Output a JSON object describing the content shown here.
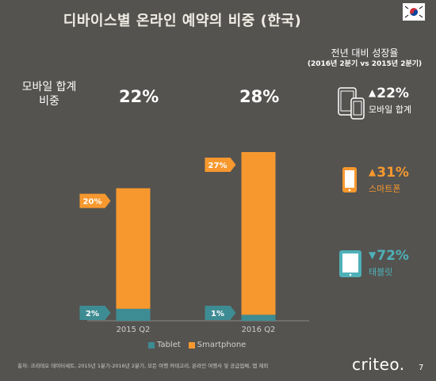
{
  "header": {
    "title": "디바이스별 온라인 예약의 비중 (한국)"
  },
  "summary": {
    "label": "모바일 합계\n비중",
    "totals": [
      "22%",
      "28%"
    ]
  },
  "chart_data": {
    "type": "bar",
    "stacked": true,
    "categories": [
      "2015 Q2",
      "2016 Q2"
    ],
    "series": [
      {
        "name": "Tablet",
        "values": [
          2,
          1
        ],
        "labels": [
          "2%",
          "1%"
        ],
        "color": "#3e8c93"
      },
      {
        "name": "Smartphone",
        "values": [
          20,
          27
        ],
        "labels": [
          "20%",
          "27%"
        ],
        "color": "#f7982e"
      }
    ],
    "ylim": [
      0,
      28
    ],
    "legend_position": "bottom"
  },
  "growth": {
    "title": "전년 대비 성장율",
    "subtitle": "(2016년 2분기 vs 2015년 2분기)",
    "items": [
      {
        "icon": "devices-icon",
        "direction": "up",
        "value": "22%",
        "label": "모바일 합계",
        "color": "#ffffff"
      },
      {
        "icon": "smartphone-icon",
        "direction": "up",
        "value": "31%",
        "label": "스마트폰",
        "color": "#f7982e"
      },
      {
        "icon": "tablet-icon",
        "direction": "down",
        "value": "72%",
        "label": "태블릿",
        "color": "#4fb0b8"
      }
    ]
  },
  "footer": {
    "source": "출처: 크리테오 데이터세트, 2015년 1분기-2016년 2분기, 모든 여행 카테고리, 온라인 여행사 및 공급업체, 앱 제외",
    "logo": "criteo.",
    "page": "7"
  }
}
